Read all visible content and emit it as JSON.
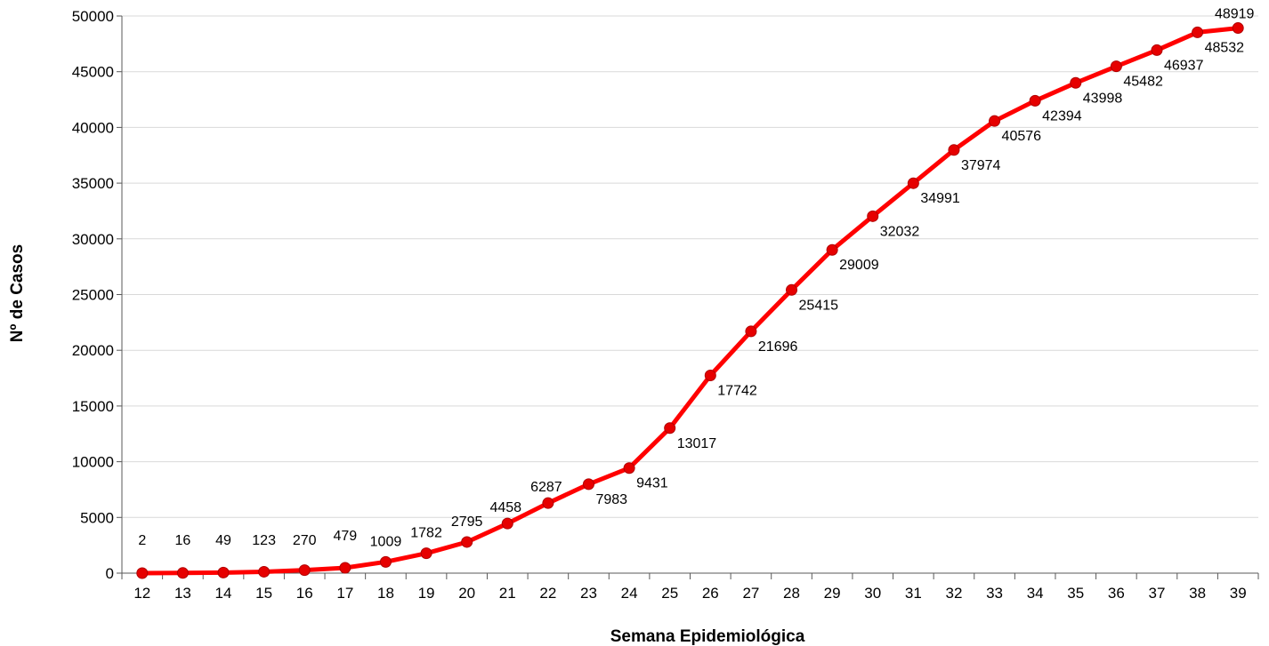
{
  "chart_data": {
    "type": "line",
    "title": "",
    "xlabel": "Semana Epidemiológica",
    "ylabel": "Nº de Casos",
    "x": [
      "12",
      "13",
      "14",
      "15",
      "16",
      "17",
      "18",
      "19",
      "20",
      "21",
      "22",
      "23",
      "24",
      "25",
      "26",
      "27",
      "28",
      "29",
      "30",
      "31",
      "32",
      "33",
      "34",
      "35",
      "36",
      "37",
      "38",
      "39"
    ],
    "series": [
      {
        "values": [
          2,
          16,
          49,
          123,
          270,
          479,
          1009,
          1782,
          2795,
          4458,
          6287,
          7983,
          9431,
          13017,
          17742,
          21696,
          25415,
          29009,
          32032,
          34991,
          37974,
          40576,
          42394,
          43998,
          45482,
          46937,
          48532,
          48919
        ],
        "labels": [
          "2",
          "16",
          "49",
          "123",
          "270",
          "479",
          "1009",
          "1782",
          "2795",
          "4458",
          "6287",
          "7983",
          "9431",
          "13017",
          "17742",
          "21696",
          "25415",
          "29009",
          "32032",
          "34991",
          "37974",
          "40576",
          "42394",
          "43998",
          "45482",
          "46937",
          "48532",
          "48919"
        ],
        "color": "#ff0000",
        "marker_color": "#e60000"
      }
    ],
    "yticks": [
      "0",
      "5000",
      "10000",
      "15000",
      "20000",
      "25000",
      "30000",
      "35000",
      "40000",
      "45000",
      "50000"
    ],
    "ylim": [
      0,
      50000
    ],
    "grid": true,
    "legend": "none"
  }
}
